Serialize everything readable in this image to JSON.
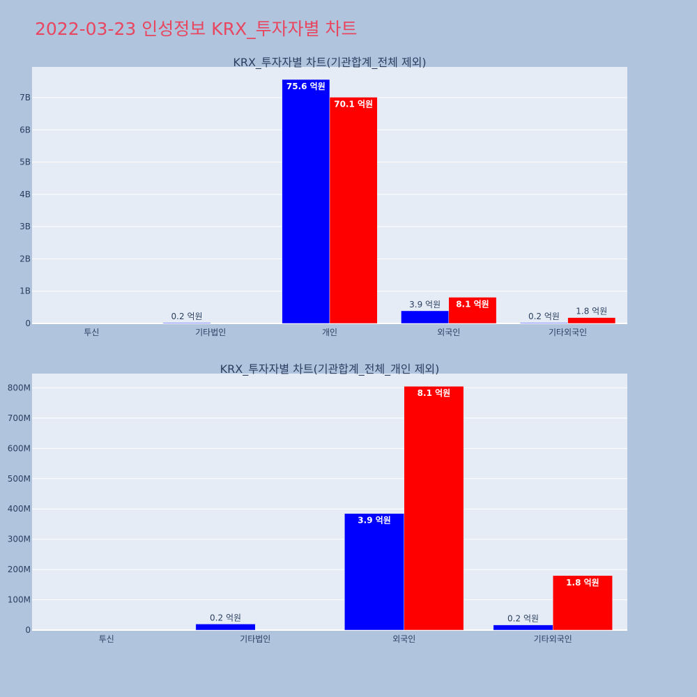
{
  "page_title": "2022-03-23 인성정보 KRX_투자자별 차트",
  "colors": {
    "background": "#b0c4de",
    "plot_bg": "#e5ecf6",
    "title": "#e8465f",
    "buy": "#0000ff",
    "sell": "#ff0000"
  },
  "chart_data": [
    {
      "type": "bar",
      "title": "KRX_투자자별 차트(기관합계_전체 제외)",
      "categories": [
        "투신",
        "기타법인",
        "개인",
        "외국인",
        "기타외국인"
      ],
      "series": [
        {
          "color": "#0000ff",
          "values": [
            0,
            20000000,
            7560000000,
            390000000,
            20000000
          ],
          "labels": [
            "",
            "0.2 억원",
            "75.6 억원",
            "3.9 억원",
            "0.2 억원"
          ]
        },
        {
          "color": "#ff0000",
          "values": [
            0,
            0,
            7010000000,
            810000000,
            180000000
          ],
          "labels": [
            "",
            "",
            "70.1 억원",
            "8.1 억원",
            "1.8 억원"
          ]
        }
      ],
      "yticks": [
        0,
        1000000000,
        2000000000,
        3000000000,
        4000000000,
        5000000000,
        6000000000,
        7000000000
      ],
      "yticklabels": [
        "0",
        "1B",
        "2B",
        "3B",
        "4B",
        "5B",
        "6B",
        "7B"
      ],
      "ylim": [
        0,
        7950000000
      ],
      "grid": true
    },
    {
      "type": "bar",
      "title": "KRX_투자자별 차트(기관합계_전체_개인 제외)",
      "categories": [
        "투신",
        "기타법인",
        "외국인",
        "기타외국인"
      ],
      "series": [
        {
          "color": "#0000ff",
          "values": [
            0,
            20000000,
            385000000,
            17000000
          ],
          "labels": [
            "",
            "0.2 억원",
            "3.9 억원",
            "0.2 억원"
          ]
        },
        {
          "color": "#ff0000",
          "values": [
            0,
            0,
            805000000,
            180000000
          ],
          "labels": [
            "",
            "",
            "8.1 억원",
            "1.8 억원"
          ]
        }
      ],
      "yticks": [
        0,
        100000000,
        200000000,
        300000000,
        400000000,
        500000000,
        600000000,
        700000000,
        800000000
      ],
      "yticklabels": [
        "0",
        "100M",
        "200M",
        "300M",
        "400M",
        "500M",
        "600M",
        "700M",
        "800M"
      ],
      "ylim": [
        0,
        847000000
      ],
      "grid": true
    }
  ]
}
